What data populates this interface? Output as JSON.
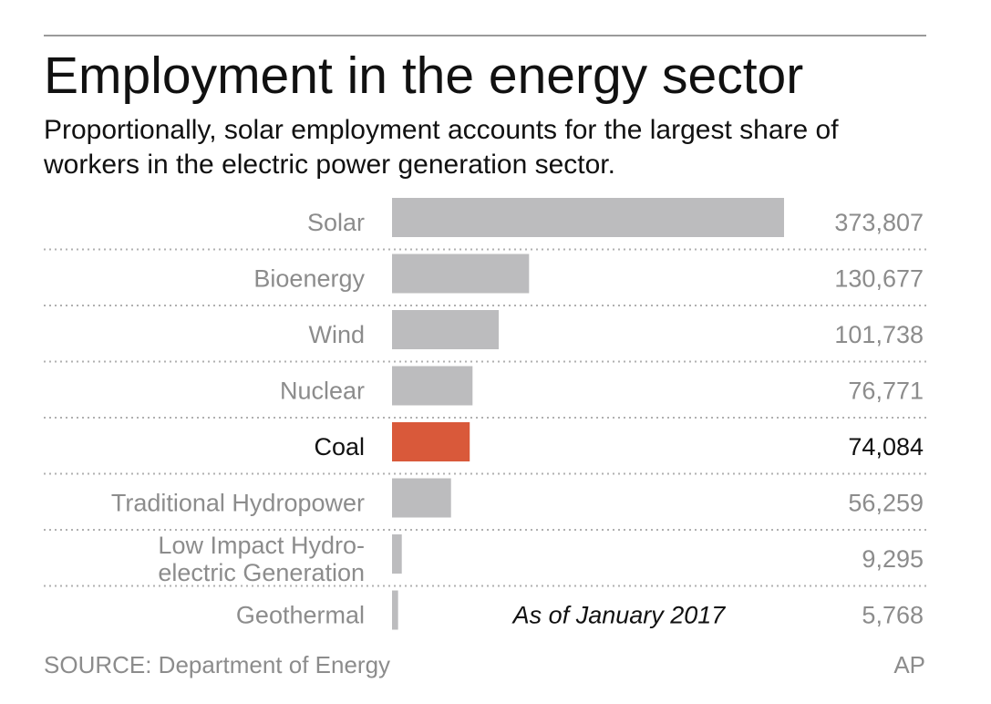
{
  "header": {
    "title": "Employment in the energy sector",
    "subtitle": "Proportionally, solar employment accounts for the largest share of workers in the electric power generation sector."
  },
  "chart_data": {
    "type": "bar",
    "orientation": "horizontal",
    "categories": [
      "Solar",
      "Bioenergy",
      "Wind",
      "Nuclear",
      "Coal",
      "Traditional Hydropower",
      "Low Impact Hydro-electric Generation",
      "Geothermal"
    ],
    "category_lines": [
      [
        "Solar"
      ],
      [
        "Bioenergy"
      ],
      [
        "Wind"
      ],
      [
        "Nuclear"
      ],
      [
        "Coal"
      ],
      [
        "Traditional Hydropower"
      ],
      [
        "Low Impact Hydro-",
        "electric Generation"
      ],
      [
        "Geothermal"
      ]
    ],
    "values": [
      373807,
      130677,
      101738,
      76771,
      74084,
      56259,
      9295,
      5768
    ],
    "value_labels": [
      "373,807",
      "130,677",
      "101,738",
      "76,771",
      "74,084",
      "56,259",
      "9,295",
      "5,768"
    ],
    "highlight": "Coal",
    "annotation": "As of January 2017",
    "colors": {
      "bar": "#bcbcbe",
      "highlight": "#d9593a",
      "muted_text": "#8c8c8c",
      "highlight_text": "#111111",
      "separator": "#b0b0b0"
    },
    "xlim": [
      0,
      373807
    ],
    "grid": false,
    "legend": "none"
  },
  "footer": {
    "source": "SOURCE: Department of Energy",
    "credit": "AP"
  }
}
